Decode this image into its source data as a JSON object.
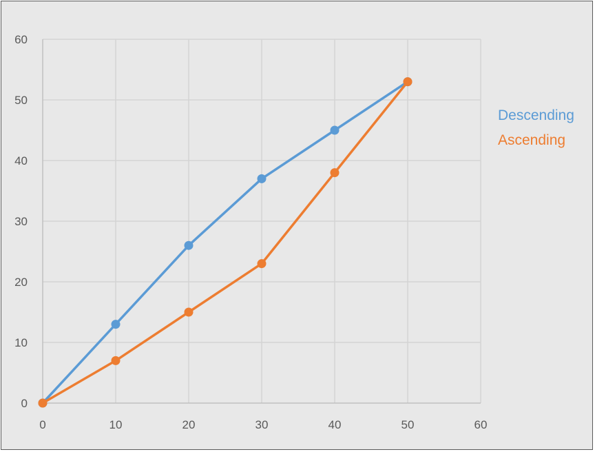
{
  "chart_data": {
    "type": "scatter",
    "title": "",
    "xlabel": "",
    "ylabel": "",
    "xlim": [
      0,
      60
    ],
    "ylim": [
      0,
      60
    ],
    "x_ticks": [
      0,
      10,
      20,
      30,
      40,
      50,
      60
    ],
    "y_ticks": [
      0,
      10,
      20,
      30,
      40,
      50,
      60
    ],
    "grid": true,
    "legend_position": "right",
    "series": [
      {
        "name": "Descending",
        "color": "#5b9bd5",
        "x": [
          0,
          10,
          20,
          30,
          40,
          50
        ],
        "y": [
          0,
          13,
          26,
          37,
          45,
          53
        ]
      },
      {
        "name": "Ascending",
        "color": "#ed7d31",
        "x": [
          0,
          10,
          20,
          30,
          40,
          50
        ],
        "y": [
          0,
          7,
          15,
          23,
          38,
          53
        ]
      }
    ]
  }
}
